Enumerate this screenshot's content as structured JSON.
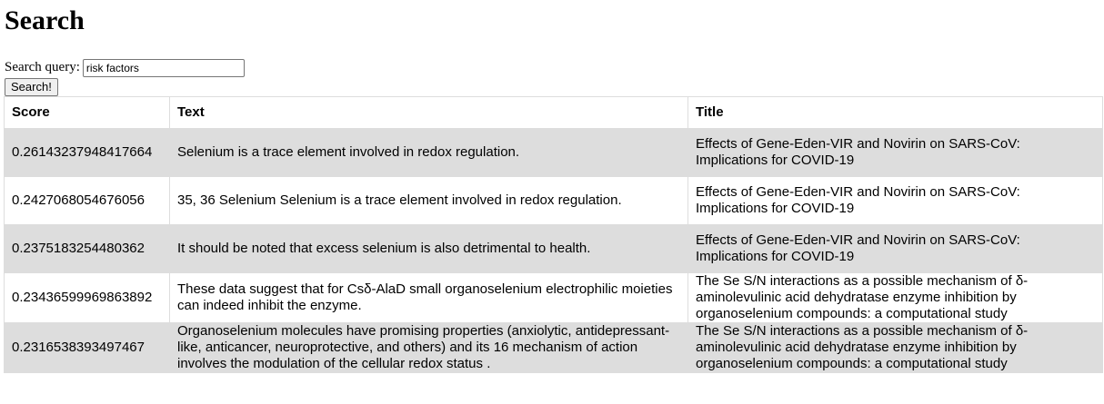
{
  "page": {
    "heading": "Search"
  },
  "search": {
    "label": "Search query:",
    "value": "risk factors",
    "button_label": "Search!"
  },
  "table": {
    "headers": [
      "Score",
      "Text",
      "Title"
    ],
    "rows": [
      {
        "score": "0.26143237948417664",
        "text": "Selenium is a trace element involved in redox regulation.",
        "title": "Effects of Gene-Eden-VIR and Novirin on SARS-CoV: Implications for COVID-19"
      },
      {
        "score": "0.2427068054676056",
        "text": "35, 36 Selenium Selenium is a trace element involved in redox regulation.",
        "title": "Effects of Gene-Eden-VIR and Novirin on SARS-CoV: Implications for COVID-19"
      },
      {
        "score": "0.2375183254480362",
        "text": "It should be noted that excess selenium is also detrimental to health.",
        "title": "Effects of Gene-Eden-VIR and Novirin on SARS-CoV: Implications for COVID-19"
      },
      {
        "score": "0.23436599969863892",
        "text": "These data suggest that for Csδ-AlaD small organoselenium electrophilic moieties can indeed inhibit the enzyme.",
        "title": "The Se S/N interactions as a possible mechanism of δ-aminolevulinic acid dehydratase enzyme inhibition by organoselenium compounds: a computational study"
      },
      {
        "score": "0.2316538393497467",
        "text": "Organoselenium molecules have promising properties (anxiolytic, antidepressant-like, anticancer, neuroprotective, and others) and its 16 mechanism of action involves the modulation of the cellular redox status .",
        "title": "The Se S/N interactions as a possible mechanism of δ-aminolevulinic acid dehydratase enzyme inhibition by organoselenium compounds: a computational study"
      }
    ]
  },
  "colors": {
    "row_shade": "#dddddd",
    "border": "#dddddd"
  }
}
